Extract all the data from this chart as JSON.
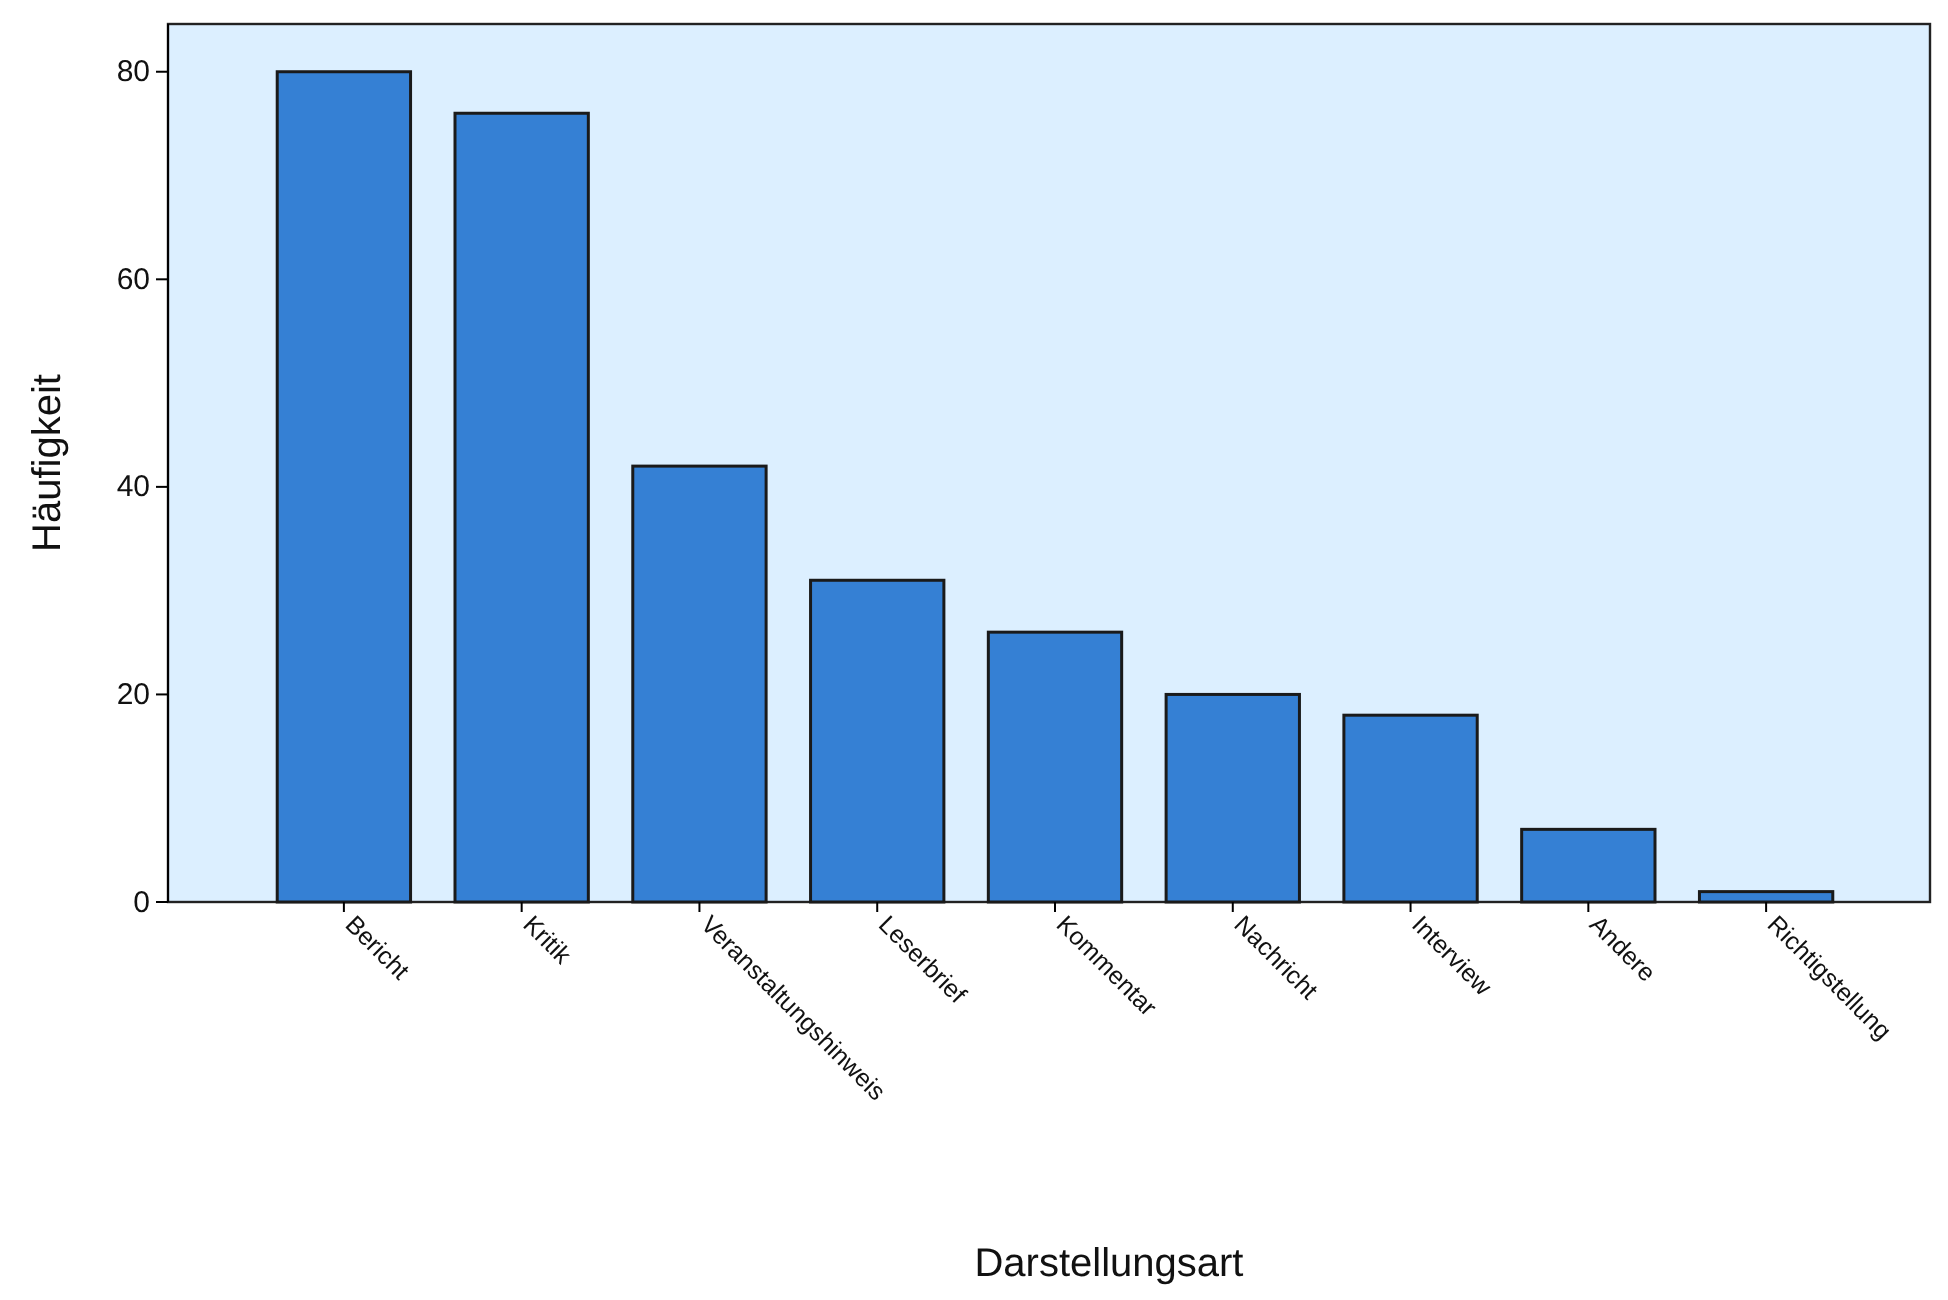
{
  "chart_data": {
    "type": "bar",
    "xlabel": "Darstellungsart",
    "ylabel": "Häufigkeit",
    "categories": [
      "Bericht",
      "Kritik",
      "Veranstaltungshinweis",
      "Leserbrief",
      "Kommentar",
      "Nachricht",
      "Interview",
      "Andere",
      "Richtigstellung"
    ],
    "values": [
      80,
      76,
      42,
      31,
      26,
      20,
      18,
      7,
      1
    ],
    "color": "#3580d4",
    "ylim": [
      0,
      84.6
    ],
    "yticks": [
      0,
      20,
      40,
      60,
      80
    ],
    "grid": false
  }
}
